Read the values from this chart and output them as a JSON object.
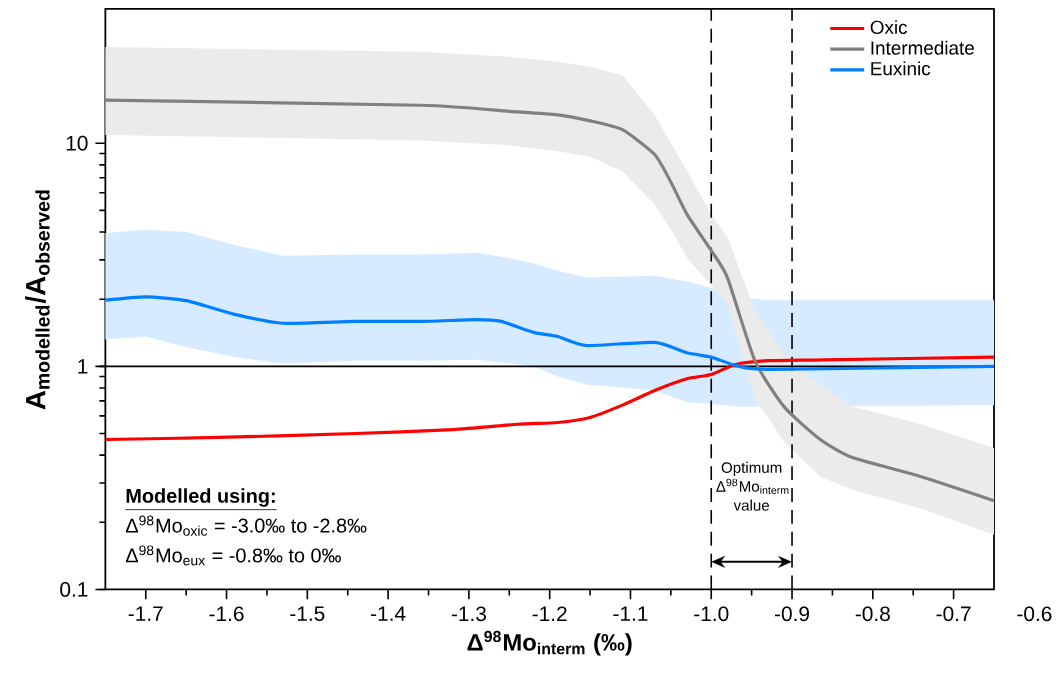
{
  "chart_data": {
    "type": "line",
    "xlabel": "Δ$^{98}$Mo$_{interm}$ (‰)",
    "ylabel": "A$_{modelled}$/A$_{observed}$",
    "xlim": [
      -1.75,
      -0.65
    ],
    "ylim": [
      0.1,
      40
    ],
    "log": "y",
    "xticks": [
      {
        "value": -1.7,
        "label": "-1.7"
      },
      {
        "value": -1.6,
        "label": "-1.6"
      },
      {
        "value": -1.5,
        "label": "-1.5"
      },
      {
        "value": -1.4,
        "label": "-1.4"
      },
      {
        "value": -1.3,
        "label": "-1.3"
      },
      {
        "value": -1.2,
        "label": "-1.2"
      },
      {
        "value": -1.1,
        "label": "-1.1"
      },
      {
        "value": -1.0,
        "label": "-1.0"
      },
      {
        "value": -0.9,
        "label": "-0.9"
      },
      {
        "value": -0.8,
        "label": "-0.8"
      },
      {
        "value": -0.7,
        "label": "-0.7"
      }
    ],
    "yticks": [
      0.1,
      1,
      10
    ],
    "legend": "top right",
    "grid": false,
    "line_style": "solid",
    "marker": "none",
    "series": [
      {
        "name": "Oxic",
        "color": "#ff0000",
        "x": [
          -1.75,
          -1.61,
          -1.44,
          -1.32,
          -1.24,
          -1.19,
          -1.15,
          -1.11,
          -1.07,
          -1.03,
          -1.0,
          -0.97,
          -0.93,
          -0.86,
          -0.65
        ],
        "values": [
          0.47,
          0.48,
          0.5,
          0.52,
          0.55,
          0.56,
          0.59,
          0.67,
          0.78,
          0.88,
          0.92,
          1.02,
          1.06,
          1.07,
          1.1
        ]
      },
      {
        "name": "Intermediate",
        "color": "#808080",
        "x": [
          -1.75,
          -1.36,
          -1.25,
          -1.19,
          -1.15,
          -1.11,
          -1.07,
          -1.05,
          -1.03,
          -1.0,
          -0.98,
          -0.946,
          -0.91,
          -0.865,
          -0.825,
          -0.74,
          -0.65
        ],
        "values": [
          15.6,
          14.8,
          13.9,
          13.4,
          12.6,
          11.5,
          8.9,
          6.7,
          4.8,
          3.3,
          2.5,
          1.06,
          0.66,
          0.47,
          0.39,
          0.32,
          0.25
        ],
        "upper": [
          27,
          25.7,
          24.4,
          23.2,
          22,
          20.2,
          13.4,
          10,
          7.5,
          4.8,
          3.8,
          1.78,
          1.13,
          0.83,
          0.66,
          0.55,
          0.43
        ],
        "lower": [
          10.9,
          10.3,
          9.8,
          9.2,
          8.7,
          7.5,
          5.3,
          4.1,
          3.07,
          2.3,
          1.9,
          0.72,
          0.46,
          0.32,
          0.28,
          0.23,
          0.176
        ]
      },
      {
        "name": "Euxinic",
        "color": "#0080ff",
        "x": [
          -1.75,
          -1.7,
          -1.65,
          -1.59,
          -1.53,
          -1.44,
          -1.36,
          -1.29,
          -1.26,
          -1.22,
          -1.19,
          -1.155,
          -1.07,
          -1.03,
          -1.0,
          -0.97,
          -0.93,
          -0.65
        ],
        "values": [
          1.98,
          2.05,
          1.97,
          1.71,
          1.56,
          1.59,
          1.59,
          1.62,
          1.59,
          1.42,
          1.36,
          1.24,
          1.28,
          1.15,
          1.1,
          1.01,
          0.97,
          1.0
        ],
        "upper": [
          3.96,
          4.1,
          4.0,
          3.5,
          3.13,
          3.17,
          3.17,
          3.23,
          3.1,
          2.9,
          2.68,
          2.5,
          2.55,
          2.4,
          2.25,
          2.05,
          1.98,
          1.98
        ],
        "lower": [
          1.32,
          1.36,
          1.22,
          1.1,
          1.03,
          1.06,
          1.06,
          1.07,
          1.04,
          1.0,
          0.9,
          0.83,
          0.78,
          0.69,
          0.68,
          0.66,
          0.66,
          0.67
        ]
      }
    ],
    "ref_lines": [
      {
        "axis": "y",
        "value": 1,
        "color": "#000000",
        "line_style": "solid"
      },
      {
        "axis": "x",
        "value": -1.0,
        "color": "#000000",
        "line_style": "dashed"
      },
      {
        "axis": "x",
        "value": -0.9,
        "color": "#000000",
        "line_style": "dashed"
      }
    ],
    "annotations": [
      "Modelled using:",
      "Δ$^{98}$Mo$_{oxic}$ = -3.0‰ to -2.8‰",
      "Δ$^{98}$Mo$_{eux}$ = -0.8‰ to 0‰",
      "Optimum Δ$^{98}$Mo$_{interm}$ value",
      "-0.6"
    ]
  }
}
